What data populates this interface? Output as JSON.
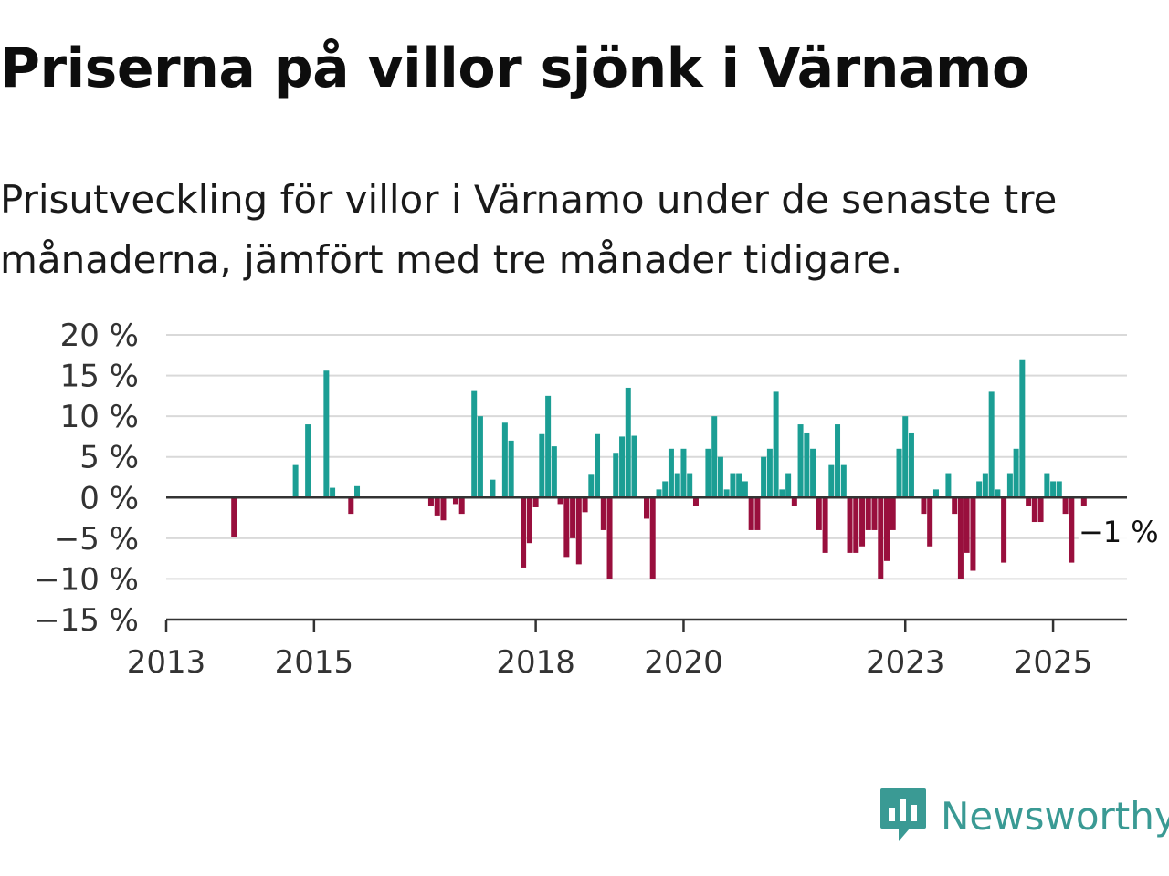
{
  "title": "Priserna på villor sjönk i Värnamo",
  "subtitle": "Prisutveckling för villor i Värnamo under de senaste tre månaderna, jämfört med tre månader tidigare.",
  "logo": {
    "text": "Newsworthy"
  },
  "colors": {
    "positive": "#1b9e94",
    "negative": "#990f3d",
    "grid": "#d9d9d9",
    "axis": "#333333",
    "logo": "#3a9a94"
  },
  "chart_data": {
    "type": "bar",
    "title": "Priserna på villor sjönk i Värnamo",
    "xlabel": "",
    "ylabel": "",
    "ylim": [
      -15,
      20
    ],
    "y_ticks": [
      20,
      15,
      10,
      5,
      0,
      -5,
      -10,
      -15
    ],
    "y_tick_labels": [
      "20 %",
      "15 %",
      "10 %",
      "5 %",
      "0 %",
      "−5 %",
      "−10 %",
      "−15 %"
    ],
    "x_ticks": [
      2013,
      2015,
      2018,
      2020,
      2023,
      2025
    ],
    "x_tick_labels": [
      "2013",
      "2015",
      "2018",
      "2020",
      "2023",
      "2025"
    ],
    "x_range": [
      2013,
      2026
    ],
    "grid": true,
    "annotation": "−1 %",
    "bars": [
      {
        "x": 2013.917,
        "value": -4.8
      },
      {
        "x": 2014.75,
        "value": 4.0
      },
      {
        "x": 2014.917,
        "value": 9.0
      },
      {
        "x": 2015.167,
        "value": 15.6
      },
      {
        "x": 2015.25,
        "value": 1.2
      },
      {
        "x": 2015.5,
        "value": -2.0
      },
      {
        "x": 2015.583,
        "value": 1.4
      },
      {
        "x": 2016.583,
        "value": -1.0
      },
      {
        "x": 2016.667,
        "value": -2.2
      },
      {
        "x": 2016.75,
        "value": -2.8
      },
      {
        "x": 2016.917,
        "value": -0.8
      },
      {
        "x": 2017.0,
        "value": -2.0
      },
      {
        "x": 2017.167,
        "value": 13.2
      },
      {
        "x": 2017.25,
        "value": 10.0
      },
      {
        "x": 2017.417,
        "value": 2.2
      },
      {
        "x": 2017.583,
        "value": 9.2
      },
      {
        "x": 2017.667,
        "value": 7.0
      },
      {
        "x": 2017.833,
        "value": -8.6
      },
      {
        "x": 2017.917,
        "value": -5.6
      },
      {
        "x": 2018.0,
        "value": -1.2
      },
      {
        "x": 2018.083,
        "value": 7.8
      },
      {
        "x": 2018.167,
        "value": 12.5
      },
      {
        "x": 2018.25,
        "value": 6.3
      },
      {
        "x": 2018.333,
        "value": -0.8
      },
      {
        "x": 2018.417,
        "value": -7.3
      },
      {
        "x": 2018.5,
        "value": -5.0
      },
      {
        "x": 2018.583,
        "value": -8.2
      },
      {
        "x": 2018.667,
        "value": -1.8
      },
      {
        "x": 2018.75,
        "value": 2.8
      },
      {
        "x": 2018.833,
        "value": 7.8
      },
      {
        "x": 2018.917,
        "value": -4.0
      },
      {
        "x": 2019.0,
        "value": -10.0
      },
      {
        "x": 2019.083,
        "value": 5.5
      },
      {
        "x": 2019.167,
        "value": 7.5
      },
      {
        "x": 2019.25,
        "value": 13.5
      },
      {
        "x": 2019.333,
        "value": 7.6
      },
      {
        "x": 2019.5,
        "value": -2.6
      },
      {
        "x": 2019.583,
        "value": -10.0
      },
      {
        "x": 2019.667,
        "value": 1.0
      },
      {
        "x": 2019.75,
        "value": 2.0
      },
      {
        "x": 2019.833,
        "value": 6.0
      },
      {
        "x": 2019.917,
        "value": 3.0
      },
      {
        "x": 2020.0,
        "value": 6.0
      },
      {
        "x": 2020.083,
        "value": 3.0
      },
      {
        "x": 2020.167,
        "value": -1.0
      },
      {
        "x": 2020.333,
        "value": 6.0
      },
      {
        "x": 2020.417,
        "value": 10.0
      },
      {
        "x": 2020.5,
        "value": 5.0
      },
      {
        "x": 2020.583,
        "value": 1.0
      },
      {
        "x": 2020.667,
        "value": 3.0
      },
      {
        "x": 2020.75,
        "value": 3.0
      },
      {
        "x": 2020.833,
        "value": 2.0
      },
      {
        "x": 2020.917,
        "value": -4.0
      },
      {
        "x": 2021.0,
        "value": -4.0
      },
      {
        "x": 2021.083,
        "value": 5.0
      },
      {
        "x": 2021.167,
        "value": 6.0
      },
      {
        "x": 2021.25,
        "value": 13.0
      },
      {
        "x": 2021.333,
        "value": 1.0
      },
      {
        "x": 2021.417,
        "value": 3.0
      },
      {
        "x": 2021.5,
        "value": -1.0
      },
      {
        "x": 2021.583,
        "value": 9.0
      },
      {
        "x": 2021.667,
        "value": 8.0
      },
      {
        "x": 2021.75,
        "value": 6.0
      },
      {
        "x": 2021.833,
        "value": -4.0
      },
      {
        "x": 2021.917,
        "value": -6.8
      },
      {
        "x": 2022.0,
        "value": 4.0
      },
      {
        "x": 2022.083,
        "value": 9.0
      },
      {
        "x": 2022.167,
        "value": 4.0
      },
      {
        "x": 2022.25,
        "value": -6.8
      },
      {
        "x": 2022.333,
        "value": -6.8
      },
      {
        "x": 2022.417,
        "value": -6.0
      },
      {
        "x": 2022.5,
        "value": -4.0
      },
      {
        "x": 2022.583,
        "value": -4.0
      },
      {
        "x": 2022.667,
        "value": -10.0
      },
      {
        "x": 2022.75,
        "value": -7.8
      },
      {
        "x": 2022.833,
        "value": -4.0
      },
      {
        "x": 2022.917,
        "value": 6.0
      },
      {
        "x": 2023.0,
        "value": 10.0
      },
      {
        "x": 2023.083,
        "value": 8.0
      },
      {
        "x": 2023.25,
        "value": -2.0
      },
      {
        "x": 2023.333,
        "value": -6.0
      },
      {
        "x": 2023.417,
        "value": 1.0
      },
      {
        "x": 2023.583,
        "value": 3.0
      },
      {
        "x": 2023.667,
        "value": -2.0
      },
      {
        "x": 2023.75,
        "value": -10.0
      },
      {
        "x": 2023.833,
        "value": -6.8
      },
      {
        "x": 2023.917,
        "value": -9.0
      },
      {
        "x": 2024.0,
        "value": 2.0
      },
      {
        "x": 2024.083,
        "value": 3.0
      },
      {
        "x": 2024.167,
        "value": 13.0
      },
      {
        "x": 2024.25,
        "value": 1.0
      },
      {
        "x": 2024.333,
        "value": -8.0
      },
      {
        "x": 2024.417,
        "value": 3.0
      },
      {
        "x": 2024.5,
        "value": 6.0
      },
      {
        "x": 2024.583,
        "value": 17.0
      },
      {
        "x": 2024.667,
        "value": -1.0
      },
      {
        "x": 2024.75,
        "value": -3.0
      },
      {
        "x": 2024.833,
        "value": -3.0
      },
      {
        "x": 2024.917,
        "value": 3.0
      },
      {
        "x": 2025.0,
        "value": 2.0
      },
      {
        "x": 2025.083,
        "value": 2.0
      },
      {
        "x": 2025.167,
        "value": -2.0
      },
      {
        "x": 2025.25,
        "value": -8.0
      },
      {
        "x": 2025.333,
        "value": 0.0
      },
      {
        "x": 2025.417,
        "value": -1.0
      }
    ]
  }
}
